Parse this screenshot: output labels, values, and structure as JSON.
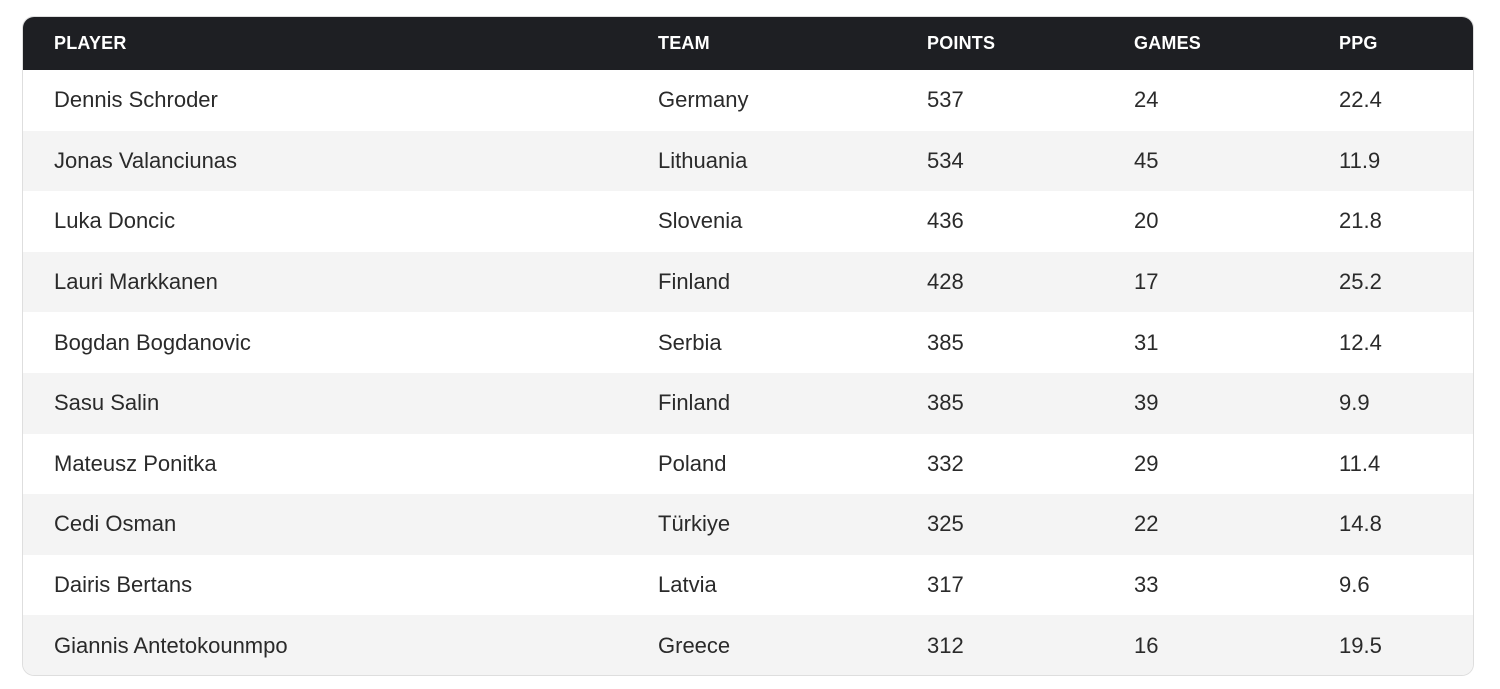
{
  "table": {
    "headers": {
      "player": "PLAYER",
      "team": "TEAM",
      "points": "POINTS",
      "games": "GAMES",
      "ppg": "PPG"
    },
    "rows": [
      {
        "player": "Dennis Schroder",
        "team": "Germany",
        "points": "537",
        "games": "24",
        "ppg": "22.4"
      },
      {
        "player": "Jonas Valanciunas",
        "team": "Lithuania",
        "points": "534",
        "games": "45",
        "ppg": "11.9"
      },
      {
        "player": "Luka Doncic",
        "team": "Slovenia",
        "points": "436",
        "games": "20",
        "ppg": "21.8"
      },
      {
        "player": "Lauri Markkanen",
        "team": "Finland",
        "points": "428",
        "games": "17",
        "ppg": "25.2"
      },
      {
        "player": "Bogdan Bogdanovic",
        "team": "Serbia",
        "points": "385",
        "games": "31",
        "ppg": "12.4"
      },
      {
        "player": "Sasu Salin",
        "team": "Finland",
        "points": "385",
        "games": "39",
        "ppg": "9.9"
      },
      {
        "player": "Mateusz Ponitka",
        "team": "Poland",
        "points": "332",
        "games": "29",
        "ppg": "11.4"
      },
      {
        "player": "Cedi Osman",
        "team": "Türkiye",
        "points": "325",
        "games": "22",
        "ppg": "14.8"
      },
      {
        "player": "Dairis Bertans",
        "team": "Latvia",
        "points": "317",
        "games": "33",
        "ppg": "9.6"
      },
      {
        "player": "Giannis Antetokounmpo",
        "team": "Greece",
        "points": "312",
        "games": "16",
        "ppg": "19.5"
      }
    ]
  }
}
